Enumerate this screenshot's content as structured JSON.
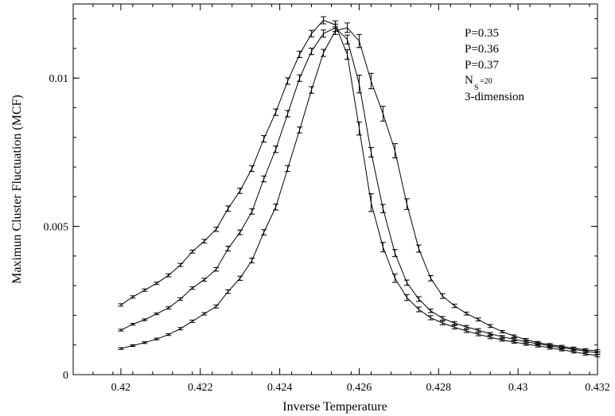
{
  "chart_data": {
    "type": "line",
    "title": "",
    "xlabel": "Inverse Temperature",
    "ylabel": "Maximun Cluster Fluctuation (MCF)",
    "xlim": [
      0.4188,
      0.432
    ],
    "ylim": [
      0,
      0.0125
    ],
    "xticks": [
      0.42,
      0.422,
      0.424,
      0.426,
      0.428,
      0.43,
      0.432
    ],
    "xtick_labels": [
      "0.42",
      "0.422",
      "0.424",
      "0.426",
      "0.428",
      "0.43",
      "0.432"
    ],
    "yticks": [
      0,
      0.005,
      0.01
    ],
    "ytick_labels": [
      "0",
      "0.005",
      "0.01"
    ],
    "grid": false,
    "legend_position": "top-right",
    "annotations": [
      "P=0.35",
      "P=0.36",
      "P=0.37",
      "3-dimension"
    ],
    "annotation_n": {
      "main": "N",
      "sub": "S",
      "suffix": "=20"
    },
    "x": [
      0.42,
      0.4203,
      0.4206,
      0.4209,
      0.4212,
      0.4215,
      0.4218,
      0.4221,
      0.4224,
      0.4227,
      0.423,
      0.4233,
      0.4236,
      0.4239,
      0.4242,
      0.4245,
      0.4248,
      0.4251,
      0.4254,
      0.4257,
      0.426,
      0.4263,
      0.4266,
      0.4269,
      0.4272,
      0.4275,
      0.4278,
      0.4281,
      0.4284,
      0.4287,
      0.429,
      0.4293,
      0.4296,
      0.4299,
      0.4302,
      0.4305,
      0.4308,
      0.4311,
      0.4314,
      0.4317,
      0.432
    ],
    "series": [
      {
        "values": [
          0.00235,
          0.00262,
          0.00285,
          0.00308,
          0.00335,
          0.0037,
          0.00415,
          0.0045,
          0.0049,
          0.0056,
          0.0062,
          0.00695,
          0.00795,
          0.00885,
          0.0099,
          0.0108,
          0.0115,
          0.01195,
          0.0118,
          0.0108,
          0.0083,
          0.0058,
          0.0043,
          0.00325,
          0.0026,
          0.0022,
          0.00192,
          0.00174,
          0.0016,
          0.00147,
          0.00136,
          0.00126,
          0.00117,
          0.0011,
          0.00103,
          0.00097,
          0.0009,
          0.00084,
          0.00077,
          0.0007,
          0.00064
        ],
        "errors": [
          4e-05,
          4e-05,
          4e-05,
          4e-05,
          5e-05,
          5e-05,
          5e-05,
          6e-05,
          7e-05,
          9e-05,
          9e-05,
          0.0001,
          0.00011,
          0.00011,
          0.00011,
          0.00011,
          0.00011,
          0.00012,
          0.00013,
          0.00016,
          0.00022,
          0.0003,
          0.00016,
          0.00014,
          0.0001,
          8e-05,
          7e-05,
          6e-05,
          6e-05,
          5e-05,
          5e-05,
          5e-05,
          4e-05,
          4e-05,
          4e-05,
          4e-05,
          4e-05,
          4e-05,
          4e-05,
          4e-05,
          4e-05
        ]
      },
      {
        "values": [
          0.0015,
          0.0017,
          0.00185,
          0.00205,
          0.00225,
          0.00255,
          0.00292,
          0.0032,
          0.00355,
          0.00425,
          0.0048,
          0.0055,
          0.0066,
          0.0076,
          0.0088,
          0.01,
          0.0109,
          0.0115,
          0.0117,
          0.0113,
          0.0098,
          0.0075,
          0.0056,
          0.0041,
          0.0031,
          0.00255,
          0.00215,
          0.0019,
          0.00174,
          0.00161,
          0.0015,
          0.00138,
          0.00128,
          0.00119,
          0.00111,
          0.00104,
          0.00097,
          0.00091,
          0.00085,
          0.00079,
          0.00073
        ],
        "errors": [
          3e-05,
          3e-05,
          3e-05,
          3e-05,
          4e-05,
          4e-05,
          4e-05,
          5e-05,
          6e-05,
          8e-05,
          8e-05,
          9e-05,
          0.0001,
          0.00011,
          0.00011,
          0.00011,
          0.00011,
          0.00012,
          0.00012,
          0.00015,
          0.0003,
          0.00016,
          0.00014,
          0.00012,
          9e-05,
          8e-05,
          6e-05,
          6e-05,
          5e-05,
          5e-05,
          5e-05,
          4e-05,
          4e-05,
          4e-05,
          4e-05,
          4e-05,
          4e-05,
          4e-05,
          4e-05,
          4e-05,
          4e-05
        ]
      },
      {
        "values": [
          0.00088,
          0.00098,
          0.00108,
          0.0012,
          0.00135,
          0.00155,
          0.0018,
          0.00205,
          0.0023,
          0.0028,
          0.00325,
          0.00385,
          0.0048,
          0.00565,
          0.00695,
          0.00825,
          0.0096,
          0.01085,
          0.0116,
          0.0117,
          0.01125,
          0.0099,
          0.0088,
          0.00755,
          0.00575,
          0.00425,
          0.00325,
          0.00265,
          0.00232,
          0.00206,
          0.00186,
          0.00164,
          0.00145,
          0.0013,
          0.00118,
          0.00108,
          0.00101,
          0.00095,
          0.00089,
          0.00084,
          0.0008
        ],
        "errors": [
          3e-05,
          3e-05,
          3e-05,
          3e-05,
          3e-05,
          4e-05,
          4e-05,
          4e-05,
          5e-05,
          6e-05,
          7e-05,
          8e-05,
          9e-05,
          0.0001,
          0.0001,
          0.0001,
          0.00011,
          0.00012,
          0.00013,
          0.00016,
          0.00022,
          0.00026,
          0.00025,
          0.00024,
          0.00018,
          0.00012,
          9e-05,
          8e-05,
          6e-05,
          5e-05,
          5e-05,
          5e-05,
          4e-05,
          4e-05,
          4e-05,
          4e-05,
          4e-05,
          4e-05,
          4e-05,
          4e-05,
          4e-05
        ]
      }
    ]
  }
}
